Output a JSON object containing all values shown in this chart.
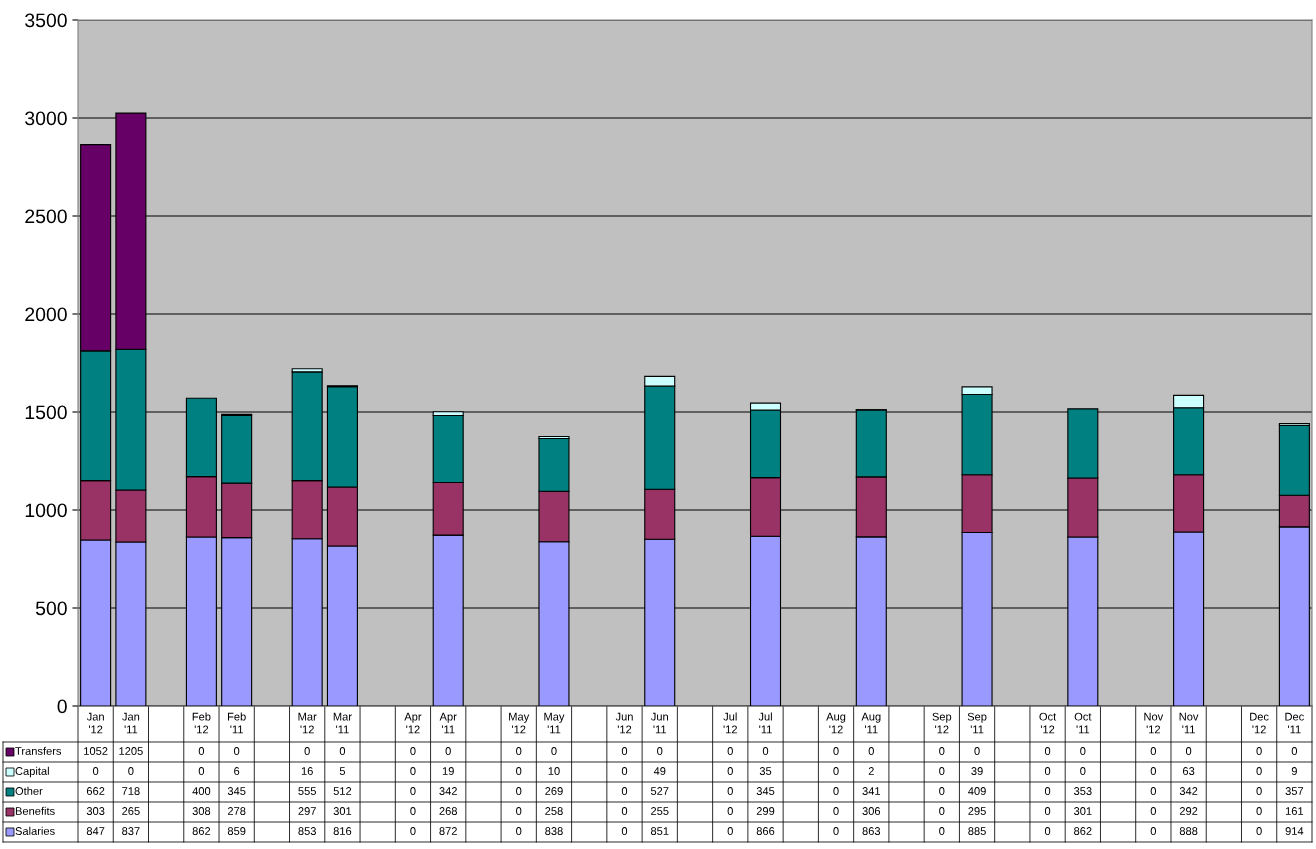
{
  "chart_data": {
    "type": "bar",
    "stacked": true,
    "data_labels": true,
    "legend": "bottom",
    "grid": "y",
    "categories": [
      "Jan '12",
      "Jan '11",
      null,
      "Feb '12",
      "Feb '11",
      null,
      "Mar '12",
      "Mar '11",
      null,
      "Apr '12",
      "Apr '11",
      null,
      "May '12",
      "May '11",
      null,
      "Jun '12",
      "Jun '11",
      null,
      "Jul '12",
      "Jul '11",
      null,
      "Aug '12",
      "Aug '11",
      null,
      "Sep '12",
      "Sep '11",
      null,
      "Oct '12",
      "Oct '11",
      null,
      "Nov '12",
      "Nov '11",
      null,
      "Dec '12",
      "Dec '11"
    ],
    "ylim": [
      0,
      3500
    ],
    "yticks": [
      0,
      500,
      1000,
      1500,
      2000,
      2500,
      3000,
      3500
    ],
    "series": [
      {
        "name": "Salaries",
        "color": "#9999ff",
        "values": [
          847,
          837,
          null,
          862,
          859,
          null,
          853,
          816,
          null,
          0,
          872,
          null,
          0,
          838,
          null,
          0,
          851,
          null,
          0,
          866,
          null,
          0,
          863,
          null,
          0,
          885,
          null,
          0,
          862,
          null,
          0,
          888,
          null,
          0,
          914
        ]
      },
      {
        "name": "Benefits",
        "color": "#993366",
        "values": [
          303,
          265,
          null,
          308,
          278,
          null,
          297,
          301,
          null,
          0,
          268,
          null,
          0,
          258,
          null,
          0,
          255,
          null,
          0,
          299,
          null,
          0,
          306,
          null,
          0,
          295,
          null,
          0,
          301,
          null,
          0,
          292,
          null,
          0,
          161
        ]
      },
      {
        "name": "Other",
        "color": "#008080",
        "values": [
          662,
          718,
          null,
          400,
          345,
          null,
          555,
          512,
          null,
          0,
          342,
          null,
          0,
          269,
          null,
          0,
          527,
          null,
          0,
          345,
          null,
          0,
          341,
          null,
          0,
          409,
          null,
          0,
          353,
          null,
          0,
          342,
          null,
          0,
          357
        ]
      },
      {
        "name": "Capital",
        "color": "#ccffff",
        "values": [
          0,
          0,
          null,
          0,
          6,
          null,
          16,
          5,
          null,
          0,
          19,
          null,
          0,
          10,
          null,
          0,
          49,
          null,
          0,
          35,
          null,
          0,
          2,
          null,
          0,
          39,
          null,
          0,
          0,
          null,
          0,
          63,
          null,
          0,
          9
        ]
      },
      {
        "name": "Transfers",
        "color": "#660066",
        "values": [
          1052,
          1205,
          null,
          0,
          0,
          null,
          0,
          0,
          null,
          0,
          0,
          null,
          0,
          0,
          null,
          0,
          0,
          null,
          0,
          0,
          null,
          0,
          0,
          null,
          0,
          0,
          null,
          0,
          0,
          null,
          0,
          0,
          null,
          0,
          0
        ]
      }
    ]
  }
}
